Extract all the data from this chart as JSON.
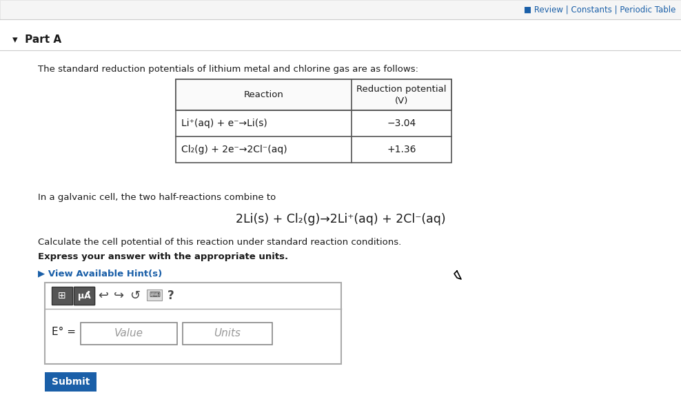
{
  "bg_color": "#f0f0f0",
  "white": "#ffffff",
  "dark_text": "#1a1a1a",
  "blue_link": "#1a5fa8",
  "header_top_text": "■ Review | Constants | Periodic Table",
  "part_a_label": "▾  Part A",
  "intro_text": "The standard reduction potentials of lithium metal and chlorine gas are as follows:",
  "table_header_reaction": "Reaction",
  "table_header_reduction": "Reduction potential\n(V)",
  "table_row1_reaction": "Li⁺(aq) + e⁻→Li(s)",
  "table_row1_value": "−3.04",
  "table_row2_reaction": "Cl₂(g) + 2e⁻→2Cl⁻(aq)",
  "table_row2_value": "+1.36",
  "galvanic_text": "In a galvanic cell, the two half-reactions combine to",
  "equation": "2Li(s) + Cl₂(g)→2Li⁺(aq) + 2Cl⁻(aq)",
  "calculate_text": "Calculate the cell potential of this reaction under standard reaction conditions.",
  "express_text": "Express your answer with the appropriate units.",
  "hint_text": "▶ View Available Hint(s)",
  "e_label": "E° =",
  "value_placeholder": "Value",
  "units_placeholder": "Units",
  "submit_label": "Submit",
  "question_mark": "?",
  "submit_bg": "#1a5fa8",
  "box_border": "#888888"
}
